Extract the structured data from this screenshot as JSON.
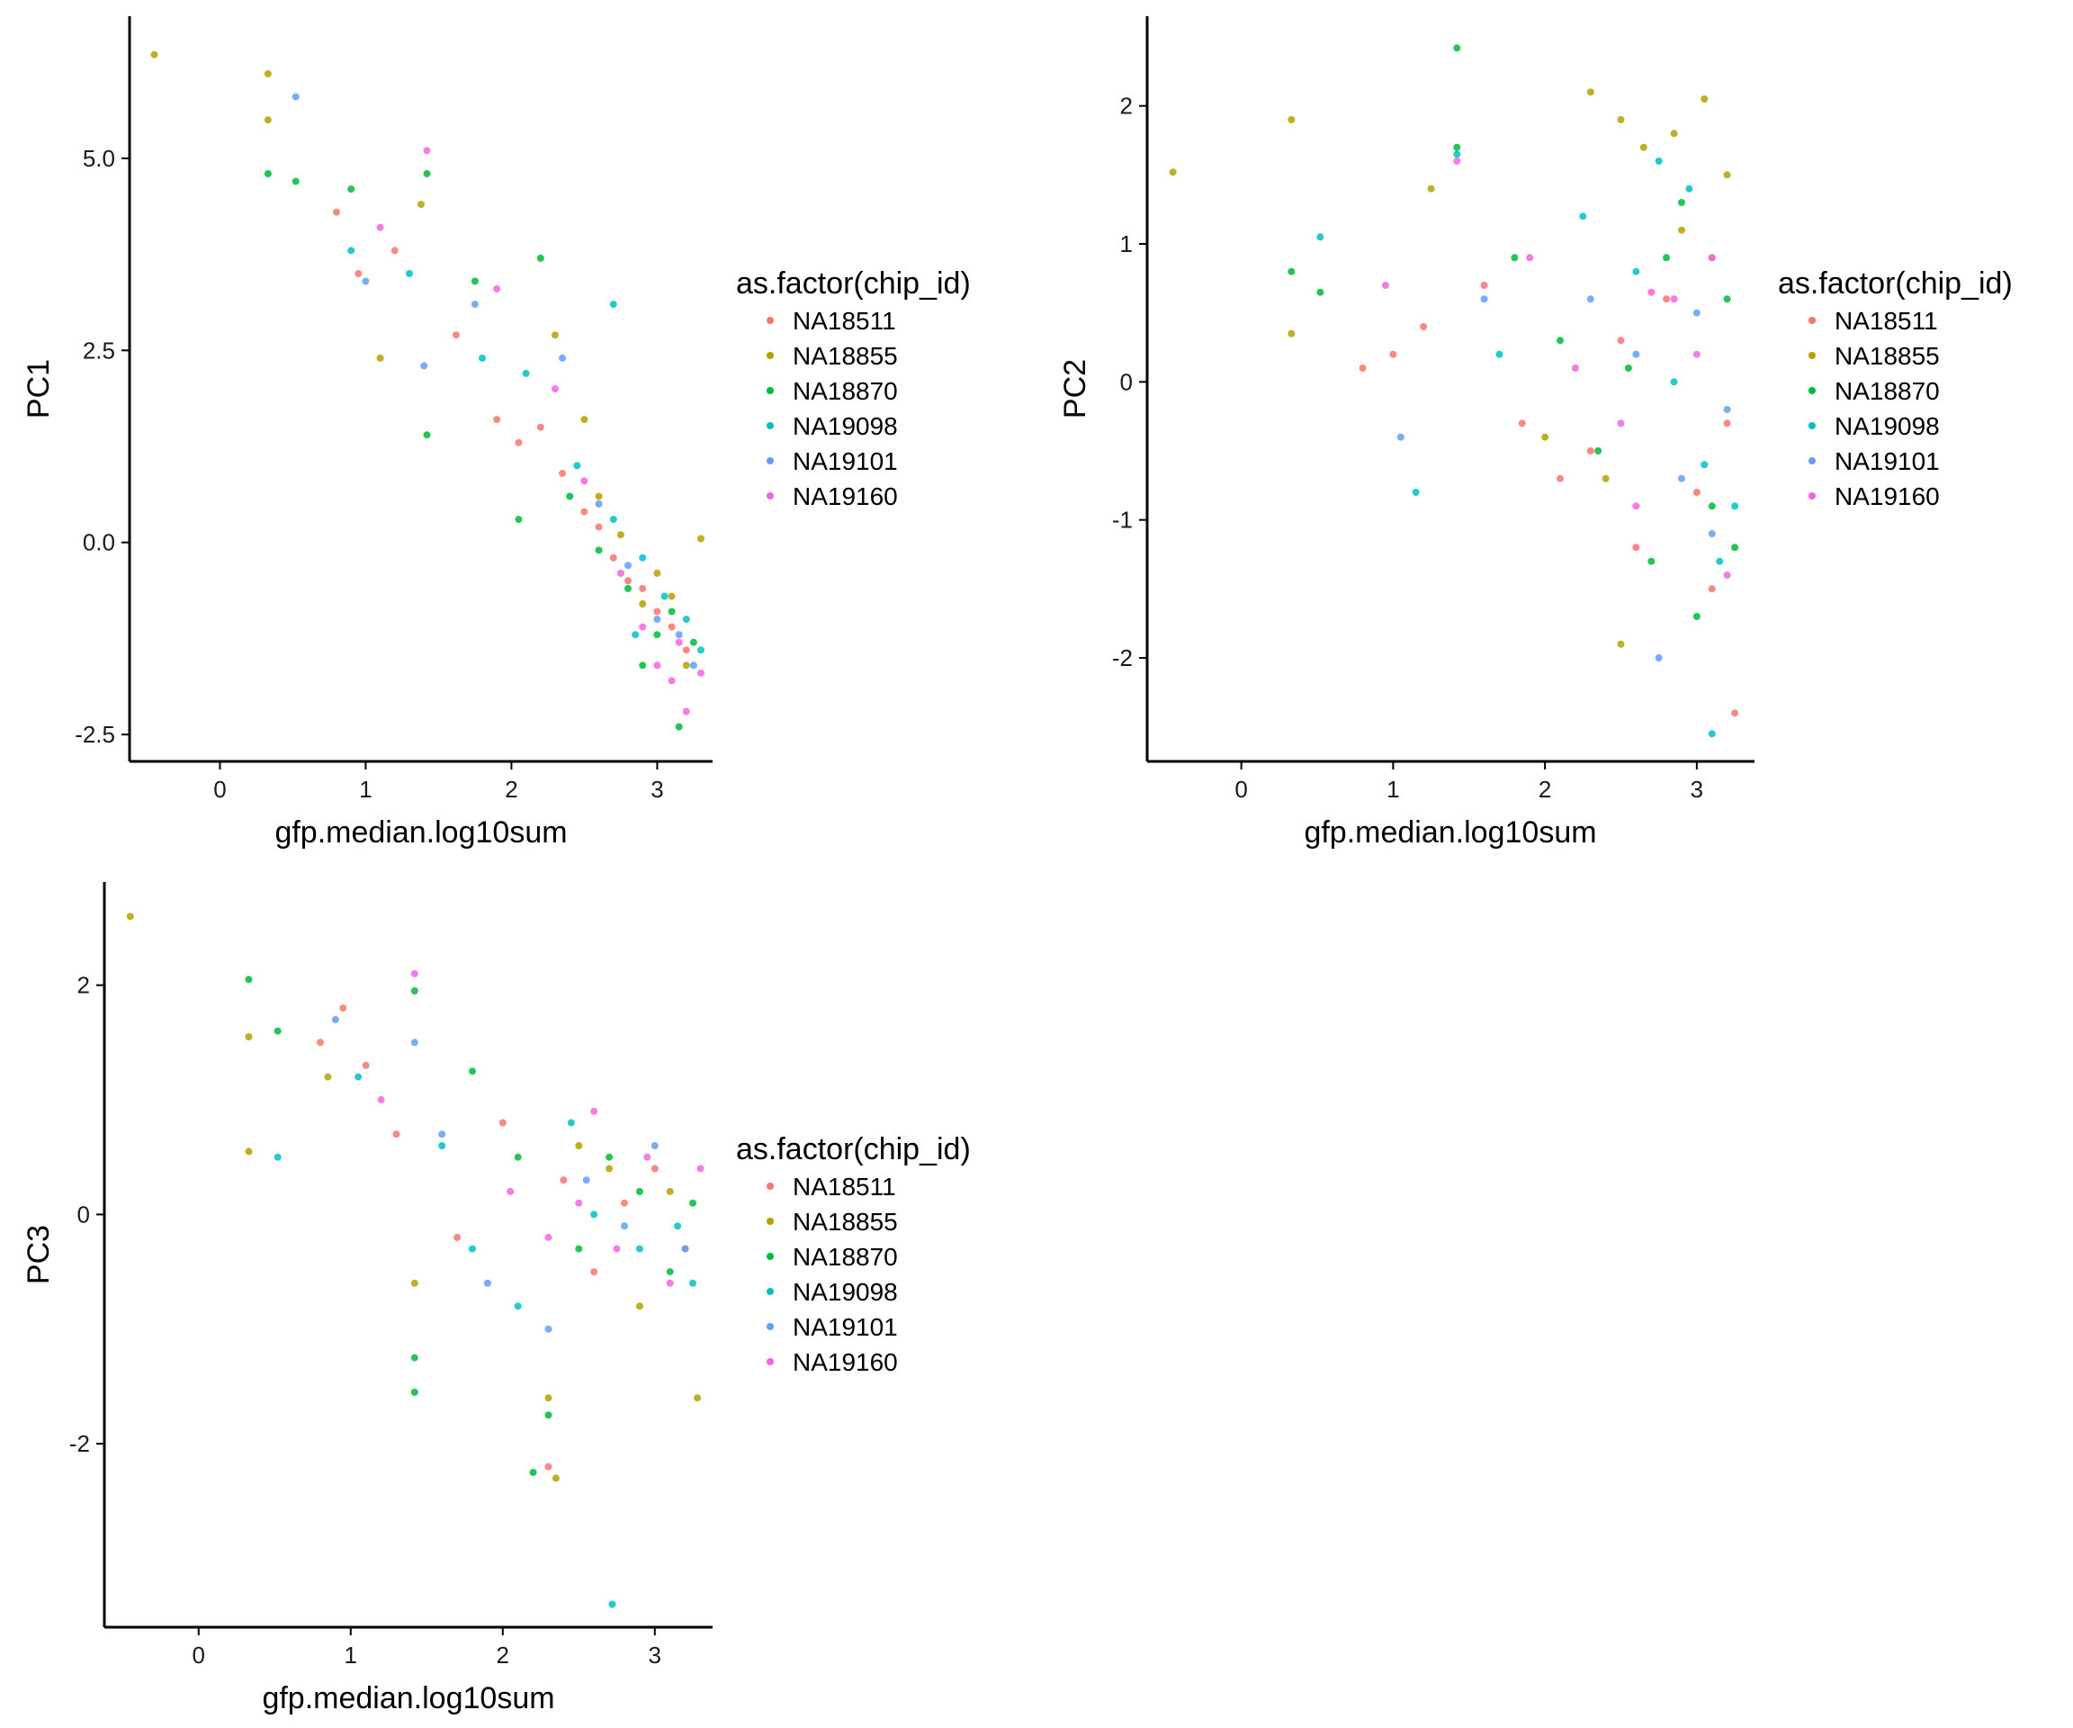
{
  "chart_data": [
    {
      "type": "scatter",
      "id": "pc1",
      "xlabel": "gfp.median.log10sum",
      "ylabel": "PC1",
      "xlim": [
        -0.62,
        3.38
      ],
      "ylim": [
        -2.85,
        6.85
      ],
      "xticks": [
        {
          "v": 0,
          "label": "0"
        },
        {
          "v": 1,
          "label": "1"
        },
        {
          "v": 2,
          "label": "2"
        },
        {
          "v": 3,
          "label": "3"
        }
      ],
      "yticks": [
        {
          "v": -2.5,
          "label": "-2.5"
        },
        {
          "v": 0,
          "label": "0.0"
        },
        {
          "v": 2.5,
          "label": "2.5"
        },
        {
          "v": 5,
          "label": "5.0"
        }
      ],
      "legend_title": "as.factor(chip_id)",
      "legend_position": "right",
      "series": [
        {
          "name": "NA18511",
          "values": [
            [
              0.8,
              4.3
            ],
            [
              0.95,
              3.5
            ],
            [
              1.2,
              3.8
            ],
            [
              1.62,
              2.7
            ],
            [
              1.9,
              1.6
            ],
            [
              2.05,
              1.3
            ],
            [
              2.2,
              1.5
            ],
            [
              2.35,
              0.9
            ],
            [
              2.5,
              0.4
            ],
            [
              2.6,
              0.2
            ],
            [
              2.7,
              -0.2
            ],
            [
              2.8,
              -0.5
            ],
            [
              2.9,
              -0.6
            ],
            [
              3.0,
              -0.9
            ],
            [
              3.1,
              -1.1
            ],
            [
              3.2,
              -1.4
            ]
          ]
        },
        {
          "name": "NA18855",
          "values": [
            [
              -0.45,
              6.35
            ],
            [
              0.33,
              6.1
            ],
            [
              0.33,
              5.5
            ],
            [
              1.38,
              4.4
            ],
            [
              1.1,
              2.4
            ],
            [
              2.3,
              2.7
            ],
            [
              2.5,
              1.6
            ],
            [
              2.6,
              0.6
            ],
            [
              2.75,
              0.1
            ],
            [
              3.0,
              -0.4
            ],
            [
              3.3,
              0.05
            ],
            [
              3.1,
              -0.7
            ],
            [
              3.2,
              -1.6
            ],
            [
              2.9,
              -0.8
            ]
          ]
        },
        {
          "name": "NA18870",
          "values": [
            [
              0.33,
              4.8
            ],
            [
              0.52,
              4.7
            ],
            [
              0.9,
              4.6
            ],
            [
              1.42,
              4.8
            ],
            [
              1.42,
              1.4
            ],
            [
              1.75,
              3.4
            ],
            [
              2.2,
              3.7
            ],
            [
              2.05,
              0.3
            ],
            [
              2.4,
              0.6
            ],
            [
              2.6,
              -0.1
            ],
            [
              2.8,
              -0.6
            ],
            [
              3.0,
              -1.2
            ],
            [
              3.15,
              -2.4
            ],
            [
              3.25,
              -1.3
            ],
            [
              2.9,
              -1.6
            ],
            [
              3.1,
              -0.9
            ]
          ]
        },
        {
          "name": "NA19098",
          "values": [
            [
              0.9,
              3.8
            ],
            [
              1.3,
              3.5
            ],
            [
              1.8,
              2.4
            ],
            [
              2.1,
              2.2
            ],
            [
              2.7,
              3.1
            ],
            [
              2.45,
              1.0
            ],
            [
              2.7,
              0.3
            ],
            [
              2.9,
              -0.2
            ],
            [
              3.05,
              -0.7
            ],
            [
              3.2,
              -1.0
            ],
            [
              3.3,
              -1.4
            ],
            [
              2.85,
              -1.2
            ]
          ]
        },
        {
          "name": "NA19101",
          "values": [
            [
              0.52,
              5.8
            ],
            [
              1.0,
              3.4
            ],
            [
              1.4,
              2.3
            ],
            [
              1.75,
              3.1
            ],
            [
              2.35,
              2.4
            ],
            [
              2.6,
              0.5
            ],
            [
              2.8,
              -0.3
            ],
            [
              3.0,
              -1.0
            ],
            [
              3.15,
              -1.2
            ],
            [
              3.25,
              -1.6
            ]
          ]
        },
        {
          "name": "NA19160",
          "values": [
            [
              1.42,
              5.1
            ],
            [
              1.1,
              4.1
            ],
            [
              1.9,
              3.3
            ],
            [
              2.3,
              2.0
            ],
            [
              2.5,
              0.8
            ],
            [
              2.75,
              -0.4
            ],
            [
              2.9,
              -1.1
            ],
            [
              3.0,
              -1.6
            ],
            [
              3.1,
              -1.8
            ],
            [
              3.2,
              -2.2
            ],
            [
              3.3,
              -1.7
            ],
            [
              3.15,
              -1.3
            ]
          ]
        }
      ]
    },
    {
      "type": "scatter",
      "id": "pc2",
      "xlabel": "gfp.median.log10sum",
      "ylabel": "PC2",
      "xlim": [
        -0.62,
        3.38
      ],
      "ylim": [
        -2.75,
        2.65
      ],
      "xticks": [
        {
          "v": 0,
          "label": "0"
        },
        {
          "v": 1,
          "label": "1"
        },
        {
          "v": 2,
          "label": "2"
        },
        {
          "v": 3,
          "label": "3"
        }
      ],
      "yticks": [
        {
          "v": -2,
          "label": "-2"
        },
        {
          "v": -1,
          "label": "-1"
        },
        {
          "v": 0,
          "label": "0"
        },
        {
          "v": 1,
          "label": "1"
        },
        {
          "v": 2,
          "label": "2"
        }
      ],
      "legend_title": "as.factor(chip_id)",
      "legend_position": "right",
      "series": [
        {
          "name": "NA18511",
          "values": [
            [
              0.8,
              0.1
            ],
            [
              1.0,
              0.2
            ],
            [
              1.2,
              0.4
            ],
            [
              1.6,
              0.7
            ],
            [
              1.85,
              -0.3
            ],
            [
              2.1,
              -0.7
            ],
            [
              2.3,
              -0.5
            ],
            [
              2.5,
              0.3
            ],
            [
              2.6,
              -1.2
            ],
            [
              2.8,
              0.6
            ],
            [
              3.0,
              -0.8
            ],
            [
              3.1,
              -1.5
            ],
            [
              3.25,
              -2.4
            ],
            [
              3.2,
              -0.3
            ]
          ]
        },
        {
          "name": "NA18855",
          "values": [
            [
              -0.45,
              1.52
            ],
            [
              0.33,
              1.9
            ],
            [
              0.33,
              0.35
            ],
            [
              1.25,
              1.4
            ],
            [
              2.0,
              -0.4
            ],
            [
              2.3,
              2.1
            ],
            [
              2.5,
              1.9
            ],
            [
              2.65,
              1.7
            ],
            [
              2.85,
              1.8
            ],
            [
              3.05,
              2.05
            ],
            [
              3.2,
              1.5
            ],
            [
              2.5,
              -1.9
            ],
            [
              2.4,
              -0.7
            ],
            [
              2.9,
              1.1
            ],
            [
              3.1,
              0.9
            ]
          ]
        },
        {
          "name": "NA18870",
          "values": [
            [
              0.33,
              0.8
            ],
            [
              0.52,
              0.65
            ],
            [
              1.42,
              2.42
            ],
            [
              1.42,
              1.7
            ],
            [
              1.8,
              0.9
            ],
            [
              2.1,
              0.3
            ],
            [
              2.35,
              -0.5
            ],
            [
              2.55,
              0.1
            ],
            [
              2.7,
              -1.3
            ],
            [
              2.9,
              1.3
            ],
            [
              3.1,
              -0.9
            ],
            [
              3.25,
              -1.2
            ],
            [
              3.2,
              0.6
            ],
            [
              3.0,
              -1.7
            ],
            [
              2.8,
              0.9
            ]
          ]
        },
        {
          "name": "NA19098",
          "values": [
            [
              0.52,
              1.05
            ],
            [
              1.15,
              -0.8
            ],
            [
              1.42,
              1.65
            ],
            [
              1.7,
              0.2
            ],
            [
              2.25,
              1.2
            ],
            [
              2.6,
              0.8
            ],
            [
              2.75,
              1.6
            ],
            [
              2.95,
              1.4
            ],
            [
              3.1,
              -2.55
            ],
            [
              3.05,
              -0.6
            ],
            [
              3.25,
              -0.9
            ],
            [
              2.85,
              0.0
            ],
            [
              3.15,
              -1.3
            ]
          ]
        },
        {
          "name": "NA19101",
          "values": [
            [
              1.05,
              -0.4
            ],
            [
              1.6,
              0.6
            ],
            [
              2.3,
              0.6
            ],
            [
              2.6,
              0.2
            ],
            [
              2.75,
              -2.0
            ],
            [
              3.0,
              0.5
            ],
            [
              3.2,
              -0.2
            ],
            [
              2.9,
              -0.7
            ],
            [
              3.1,
              -1.1
            ]
          ]
        },
        {
          "name": "NA19160",
          "values": [
            [
              0.95,
              0.7
            ],
            [
              1.42,
              1.6
            ],
            [
              1.9,
              0.9
            ],
            [
              2.2,
              0.1
            ],
            [
              2.5,
              -0.3
            ],
            [
              2.7,
              0.65
            ],
            [
              2.85,
              0.6
            ],
            [
              3.0,
              0.2
            ],
            [
              3.2,
              -1.4
            ],
            [
              2.6,
              -0.9
            ],
            [
              3.1,
              0.9
            ]
          ]
        }
      ]
    },
    {
      "type": "scatter",
      "id": "pc3",
      "xlabel": "gfp.median.log10sum",
      "ylabel": "PC3",
      "xlim": [
        -0.62,
        3.38
      ],
      "ylim": [
        -3.6,
        2.9
      ],
      "xticks": [
        {
          "v": 0,
          "label": "0"
        },
        {
          "v": 1,
          "label": "1"
        },
        {
          "v": 2,
          "label": "2"
        },
        {
          "v": 3,
          "label": "3"
        }
      ],
      "yticks": [
        {
          "v": -2,
          "label": "-2"
        },
        {
          "v": 0,
          "label": "0"
        },
        {
          "v": 2,
          "label": "2"
        }
      ],
      "legend_title": "as.factor(chip_id)",
      "legend_position": "right",
      "series": [
        {
          "name": "NA18511",
          "values": [
            [
              0.8,
              1.5
            ],
            [
              0.95,
              1.8
            ],
            [
              1.1,
              1.3
            ],
            [
              1.3,
              0.7
            ],
            [
              1.7,
              -0.2
            ],
            [
              2.0,
              0.8
            ],
            [
              2.3,
              -2.2
            ],
            [
              2.4,
              0.3
            ],
            [
              2.6,
              -0.5
            ],
            [
              2.8,
              0.1
            ],
            [
              3.0,
              0.4
            ],
            [
              3.2,
              -0.3
            ]
          ]
        },
        {
          "name": "NA18855",
          "values": [
            [
              -0.45,
              2.6
            ],
            [
              0.33,
              1.55
            ],
            [
              0.33,
              0.55
            ],
            [
              0.85,
              1.2
            ],
            [
              1.42,
              -0.6
            ],
            [
              2.3,
              -1.6
            ],
            [
              2.35,
              -2.3
            ],
            [
              2.5,
              0.6
            ],
            [
              2.9,
              -0.8
            ],
            [
              3.1,
              0.2
            ],
            [
              3.28,
              -1.6
            ],
            [
              2.7,
              0.4
            ]
          ]
        },
        {
          "name": "NA18870",
          "values": [
            [
              0.33,
              2.05
            ],
            [
              0.52,
              1.6
            ],
            [
              1.42,
              1.95
            ],
            [
              1.42,
              -1.25
            ],
            [
              1.42,
              -1.55
            ],
            [
              1.8,
              1.25
            ],
            [
              2.1,
              0.5
            ],
            [
              2.3,
              -1.75
            ],
            [
              2.5,
              -0.3
            ],
            [
              2.7,
              0.5
            ],
            [
              2.9,
              0.2
            ],
            [
              3.1,
              -0.5
            ],
            [
              3.25,
              0.1
            ],
            [
              2.2,
              -2.25
            ]
          ]
        },
        {
          "name": "NA19098",
          "values": [
            [
              0.52,
              0.5
            ],
            [
              1.05,
              1.2
            ],
            [
              1.6,
              0.6
            ],
            [
              1.8,
              -0.3
            ],
            [
              2.1,
              -0.8
            ],
            [
              2.45,
              0.8
            ],
            [
              2.6,
              0.0
            ],
            [
              2.72,
              -3.4
            ],
            [
              2.9,
              -0.3
            ],
            [
              3.15,
              -0.1
            ],
            [
              3.25,
              -0.6
            ]
          ]
        },
        {
          "name": "NA19101",
          "values": [
            [
              0.9,
              1.7
            ],
            [
              1.42,
              1.5
            ],
            [
              1.6,
              0.7
            ],
            [
              1.9,
              -0.6
            ],
            [
              2.3,
              -1.0
            ],
            [
              2.55,
              0.3
            ],
            [
              2.8,
              -0.1
            ],
            [
              3.0,
              0.6
            ],
            [
              3.2,
              -0.3
            ]
          ]
        },
        {
          "name": "NA19160",
          "values": [
            [
              1.42,
              2.1
            ],
            [
              1.2,
              1.0
            ],
            [
              2.05,
              0.2
            ],
            [
              2.3,
              -0.2
            ],
            [
              2.5,
              0.1
            ],
            [
              2.75,
              -0.3
            ],
            [
              2.95,
              0.5
            ],
            [
              3.1,
              -0.6
            ],
            [
              3.3,
              0.4
            ],
            [
              2.6,
              0.9
            ]
          ]
        }
      ]
    }
  ],
  "palette": {
    "NA18511": "#F8766D",
    "NA18855": "#B79F00",
    "NA18870": "#00BA38",
    "NA19098": "#00BFC4",
    "NA19101": "#619CFF",
    "NA19160": "#F564E3"
  }
}
